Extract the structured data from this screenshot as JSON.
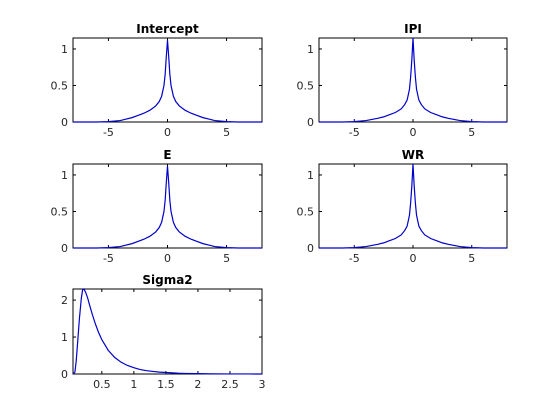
{
  "chart_data": [
    {
      "type": "line",
      "title": "Intercept",
      "xlim": [
        -8,
        8
      ],
      "ylim": [
        0,
        1.15
      ],
      "xticks": [
        -5,
        0,
        5
      ],
      "xtick_labels": [
        "-5",
        "0",
        "5"
      ],
      "yticks": [
        0,
        0.5,
        1
      ],
      "ytick_labels": [
        "0",
        "0.5",
        "1"
      ],
      "grid": false,
      "series": [
        {
          "color": "#0000cc",
          "x": [
            -8,
            -6,
            -5,
            -4,
            -3.5,
            -3,
            -2.5,
            -2,
            -1.5,
            -1,
            -0.7,
            -0.5,
            -0.3,
            -0.2,
            -0.1,
            0,
            0.1,
            0.2,
            0.3,
            0.5,
            0.7,
            1,
            1.5,
            2,
            2.5,
            3,
            3.5,
            4,
            5,
            6,
            8
          ],
          "y": [
            0,
            0,
            0.005,
            0.02,
            0.04,
            0.06,
            0.09,
            0.12,
            0.16,
            0.22,
            0.28,
            0.35,
            0.5,
            0.65,
            0.9,
            1.12,
            0.9,
            0.65,
            0.5,
            0.35,
            0.28,
            0.22,
            0.16,
            0.12,
            0.09,
            0.06,
            0.04,
            0.02,
            0.005,
            0,
            0
          ]
        }
      ]
    },
    {
      "type": "line",
      "title": "IPI",
      "xlim": [
        -8,
        8
      ],
      "ylim": [
        0,
        1.15
      ],
      "xticks": [
        -5,
        0,
        5
      ],
      "xtick_labels": [
        "-5",
        "0",
        "5"
      ],
      "yticks": [
        0,
        0.5,
        1
      ],
      "ytick_labels": [
        "0",
        "0.5",
        "1"
      ],
      "grid": false,
      "series": [
        {
          "color": "#0000cc",
          "x": [
            -8,
            -6,
            -5,
            -4,
            -3.5,
            -3,
            -2.5,
            -2,
            -1.5,
            -1,
            -0.7,
            -0.5,
            -0.3,
            -0.2,
            -0.1,
            -0.05,
            0,
            0.05,
            0.1,
            0.2,
            0.3,
            0.5,
            0.7,
            1,
            1.5,
            2,
            2.5,
            3,
            3.5,
            4,
            5,
            6,
            8
          ],
          "y": [
            0,
            0,
            0.005,
            0.02,
            0.035,
            0.05,
            0.07,
            0.1,
            0.13,
            0.18,
            0.24,
            0.3,
            0.45,
            0.62,
            0.85,
            1.0,
            1.15,
            1.0,
            0.85,
            0.62,
            0.45,
            0.3,
            0.24,
            0.18,
            0.13,
            0.1,
            0.07,
            0.05,
            0.035,
            0.02,
            0.005,
            0,
            0
          ]
        }
      ]
    },
    {
      "type": "line",
      "title": "E",
      "xlim": [
        -8,
        8
      ],
      "ylim": [
        0,
        1.15
      ],
      "xticks": [
        -5,
        0,
        5
      ],
      "xtick_labels": [
        "-5",
        "0",
        "5"
      ],
      "yticks": [
        0,
        0.5,
        1
      ],
      "ytick_labels": [
        "0",
        "0.5",
        "1"
      ],
      "grid": false,
      "series": [
        {
          "color": "#0000cc",
          "x": [
            -8,
            -6,
            -5,
            -4,
            -3.5,
            -3,
            -2.5,
            -2,
            -1.5,
            -1,
            -0.7,
            -0.5,
            -0.3,
            -0.2,
            -0.1,
            0,
            0.1,
            0.2,
            0.3,
            0.5,
            0.7,
            1,
            1.5,
            2,
            2.5,
            3,
            3.5,
            4,
            5,
            6,
            8
          ],
          "y": [
            0,
            0,
            0.005,
            0.02,
            0.04,
            0.06,
            0.09,
            0.12,
            0.16,
            0.22,
            0.28,
            0.35,
            0.5,
            0.65,
            0.9,
            1.12,
            0.9,
            0.65,
            0.5,
            0.35,
            0.28,
            0.22,
            0.16,
            0.12,
            0.09,
            0.06,
            0.04,
            0.02,
            0.005,
            0,
            0
          ]
        }
      ]
    },
    {
      "type": "line",
      "title": "WR",
      "xlim": [
        -8,
        8
      ],
      "ylim": [
        0,
        1.15
      ],
      "xticks": [
        -5,
        0,
        5
      ],
      "xtick_labels": [
        "-5",
        "0",
        "5"
      ],
      "yticks": [
        0,
        0.5,
        1
      ],
      "ytick_labels": [
        "0",
        "0.5",
        "1"
      ],
      "grid": false,
      "series": [
        {
          "color": "#0000cc",
          "x": [
            -8,
            -6,
            -5,
            -4,
            -3.5,
            -3,
            -2.5,
            -2,
            -1.5,
            -1,
            -0.7,
            -0.5,
            -0.3,
            -0.2,
            -0.1,
            -0.05,
            0,
            0.05,
            0.1,
            0.2,
            0.3,
            0.5,
            0.7,
            1,
            1.5,
            2,
            2.5,
            3,
            3.5,
            4,
            5,
            6,
            8
          ],
          "y": [
            0,
            0,
            0.005,
            0.02,
            0.035,
            0.05,
            0.07,
            0.1,
            0.13,
            0.18,
            0.24,
            0.3,
            0.45,
            0.62,
            0.85,
            1.0,
            1.15,
            1.0,
            0.85,
            0.62,
            0.45,
            0.3,
            0.24,
            0.18,
            0.13,
            0.1,
            0.07,
            0.05,
            0.035,
            0.02,
            0.005,
            0,
            0
          ]
        }
      ]
    },
    {
      "type": "line",
      "title": "Sigma2",
      "xlim": [
        0.05,
        3
      ],
      "ylim": [
        0,
        2.3
      ],
      "xticks": [
        0.5,
        1,
        1.5,
        2,
        2.5,
        3
      ],
      "xtick_labels": [
        "0.5",
        "1",
        "1.5",
        "2",
        "2.5",
        "3"
      ],
      "yticks": [
        0,
        1,
        2
      ],
      "ytick_labels": [
        "0",
        "1",
        "2"
      ],
      "grid": false,
      "series": [
        {
          "color": "#0000cc",
          "x": [
            0.05,
            0.08,
            0.1,
            0.12,
            0.15,
            0.18,
            0.2,
            0.22,
            0.25,
            0.28,
            0.3,
            0.35,
            0.4,
            0.45,
            0.5,
            0.6,
            0.7,
            0.8,
            0.9,
            1.0,
            1.1,
            1.2,
            1.3,
            1.4,
            1.5,
            1.6,
            1.7,
            1.8,
            2.0,
            2.2,
            2.5,
            2.8,
            3.0
          ],
          "y": [
            0,
            0.05,
            0.35,
            0.8,
            1.5,
            2.05,
            2.28,
            2.3,
            2.2,
            2.05,
            1.92,
            1.62,
            1.35,
            1.12,
            0.93,
            0.64,
            0.45,
            0.32,
            0.23,
            0.17,
            0.12,
            0.09,
            0.07,
            0.05,
            0.04,
            0.03,
            0.02,
            0.015,
            0.01,
            0.005,
            0.002,
            0.001,
            0
          ]
        }
      ]
    }
  ]
}
